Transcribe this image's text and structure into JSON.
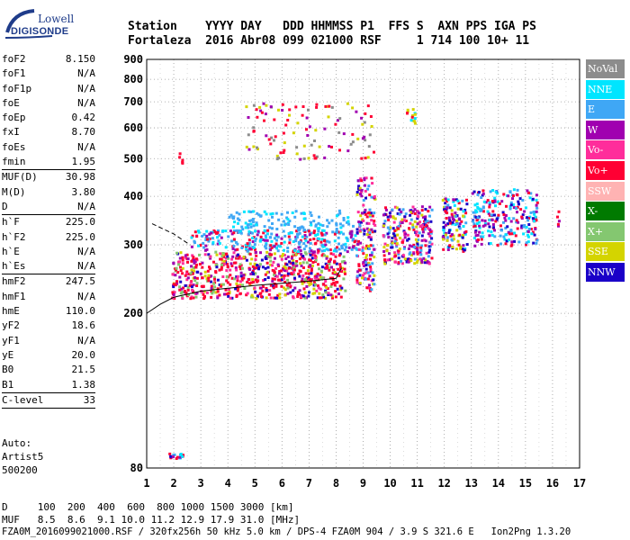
{
  "logo": {
    "line1": "Lowell",
    "line2": "DIGISONDE"
  },
  "header": {
    "line1": "Station    YYYY DAY   DDD HHMMSS P1  FFS S  AXN PPS IGA PS",
    "line2": "Fortaleza  2016 Abr08 099 021000 RSF     1 714 100 10+ 11"
  },
  "params": [
    {
      "name": "foF2",
      "value": "8.150"
    },
    {
      "name": "foF1",
      "value": "N/A"
    },
    {
      "name": "foF1p",
      "value": "N/A"
    },
    {
      "name": "foE",
      "value": "N/A"
    },
    {
      "name": "foEp",
      "value": "0.42"
    },
    {
      "name": "fxI",
      "value": "8.70"
    },
    {
      "name": "foEs",
      "value": "N/A"
    },
    {
      "name": "fmin",
      "value": "1.95"
    },
    {
      "sep": true
    },
    {
      "name": "MUF(D)",
      "value": "30.98"
    },
    {
      "name": "M(D)",
      "value": "3.80"
    },
    {
      "name": "D",
      "value": "N/A"
    },
    {
      "sep": true
    },
    {
      "name": "h`F",
      "value": "225.0"
    },
    {
      "name": "h`F2",
      "value": "225.0"
    },
    {
      "name": "h`E",
      "value": "N/A"
    },
    {
      "name": "h`Es",
      "value": "N/A"
    },
    {
      "sep": true
    },
    {
      "name": "hmF2",
      "value": "247.5"
    },
    {
      "name": "hmF1",
      "value": "N/A"
    },
    {
      "name": "hmE",
      "value": "110.0"
    },
    {
      "name": "yF2",
      "value": "18.6"
    },
    {
      "name": "yF1",
      "value": "N/A"
    },
    {
      "name": "yE",
      "value": "20.0"
    },
    {
      "name": "B0",
      "value": "21.5"
    },
    {
      "name": "B1",
      "value": "1.38"
    },
    {
      "sep": true
    },
    {
      "name": "C-level",
      "value": "33"
    },
    {
      "sep": true
    }
  ],
  "autoscaling": {
    "line1": "Auto:",
    "line2": "Artist5",
    "line3": "500200"
  },
  "footer": {
    "d_row": "D     100  200  400  600  800 1000 1500 3000 [km]",
    "muf_row": "MUF   8.5  8.6  9.1 10.0 11.2 12.9 17.9 31.0 [MHz]",
    "file_row": "FZA0M_2016099021000.RSF / 320fx256h 50 kHz 5.0 km / DPS-4 FZA0M 904 / 3.9 S 321.6 E   Ion2Png 1.3.20"
  },
  "legend": [
    {
      "label": "NoVal",
      "color": "#8c8c8c"
    },
    {
      "label": "NNE",
      "color": "#00e5ff"
    },
    {
      "label": "E",
      "color": "#3fa7f5"
    },
    {
      "label": "W",
      "color": "#a000b0"
    },
    {
      "label": "Vo-",
      "color": "#ff2d9b"
    },
    {
      "label": "Vo+",
      "color": "#ff0033"
    },
    {
      "label": "SSW",
      "color": "#ffb3b3"
    },
    {
      "label": "X-",
      "color": "#007a00"
    },
    {
      "label": "X+",
      "color": "#84c770"
    },
    {
      "label": "SSE",
      "color": "#d4d400"
    },
    {
      "label": "NNW",
      "color": "#1a00c8"
    }
  ],
  "chart_data": {
    "type": "scatter",
    "xlabel": "",
    "ylabel": "",
    "xlim": [
      1,
      17
    ],
    "ylim": [
      80,
      900
    ],
    "y_scale": "log",
    "x_ticks": [
      "1",
      "2",
      "3",
      "4",
      "5",
      "6",
      "7",
      "8",
      "9",
      "10",
      "11",
      "12",
      "13",
      "14",
      "15",
      "16",
      "17"
    ],
    "y_ticks": [
      80,
      200,
      300,
      400,
      500,
      600,
      700,
      800,
      900
    ],
    "grid": true,
    "trace_curve": [
      [
        1.0,
        200
      ],
      [
        1.5,
        211
      ],
      [
        2.0,
        220
      ],
      [
        3,
        228
      ],
      [
        4,
        232
      ],
      [
        5,
        236
      ],
      [
        6,
        239
      ],
      [
        7,
        242
      ],
      [
        8,
        246
      ],
      [
        8.2,
        262
      ]
    ],
    "dashed_curve": [
      [
        1.2,
        340
      ],
      [
        2.0,
        320
      ],
      [
        2.6,
        300
      ]
    ],
    "echo_clusters": [
      {
        "x": [
          1.7,
          2.3
        ],
        "y": [
          85,
          88
        ],
        "n": 20,
        "colors": [
          "NNE",
          "E",
          "W",
          "Vo+",
          "NNW"
        ]
      },
      {
        "x": [
          1.9,
          8.3
        ],
        "y": [
          220,
          290
        ],
        "n": 700,
        "colors": [
          "Vo+",
          "Vo-",
          "W",
          "Vo+",
          "NNW",
          "SSE",
          "X+",
          "Vo+"
        ]
      },
      {
        "x": [
          2.6,
          8.8
        ],
        "y": [
          290,
          330
        ],
        "n": 300,
        "colors": [
          "NNE",
          "E",
          "E",
          "W",
          "Vo+"
        ]
      },
      {
        "x": [
          4.0,
          8.6
        ],
        "y": [
          330,
          370
        ],
        "n": 110,
        "colors": [
          "E",
          "NNE",
          "E"
        ]
      },
      {
        "x": [
          8.7,
          9.4
        ],
        "y": [
          230,
          450
        ],
        "n": 160,
        "colors": [
          "W",
          "Vo+",
          "NNW",
          "E",
          "SSE",
          "Vo-"
        ]
      },
      {
        "x": [
          9.7,
          11.5
        ],
        "y": [
          270,
          380
        ],
        "n": 260,
        "colors": [
          "Vo+",
          "W",
          "SSE",
          "NNW",
          "E",
          "Vo-"
        ]
      },
      {
        "x": [
          11.9,
          12.8
        ],
        "y": [
          290,
          400
        ],
        "n": 120,
        "colors": [
          "NNE",
          "E",
          "W",
          "SSE",
          "Vo+",
          "NNW"
        ]
      },
      {
        "x": [
          13.0,
          15.4
        ],
        "y": [
          300,
          420
        ],
        "n": 240,
        "colors": [
          "NNE",
          "E",
          "NNW",
          "W",
          "Vo+"
        ]
      },
      {
        "x": [
          4.6,
          9.4
        ],
        "y": [
          500,
          700
        ],
        "n": 110,
        "colors": [
          "SSE",
          "NoVal",
          "W",
          "Vo+"
        ]
      },
      {
        "x": [
          10.5,
          10.9
        ],
        "y": [
          620,
          700
        ],
        "n": 15,
        "colors": [
          "SSE",
          "NNE",
          "Vo+"
        ]
      },
      {
        "x": [
          2.1,
          2.3
        ],
        "y": [
          490,
          520
        ],
        "n": 5,
        "colors": [
          "Vo+"
        ]
      },
      {
        "x": [
          16.1,
          16.2
        ],
        "y": [
          320,
          370
        ],
        "n": 5,
        "colors": [
          "Vo+",
          "W"
        ]
      }
    ]
  }
}
